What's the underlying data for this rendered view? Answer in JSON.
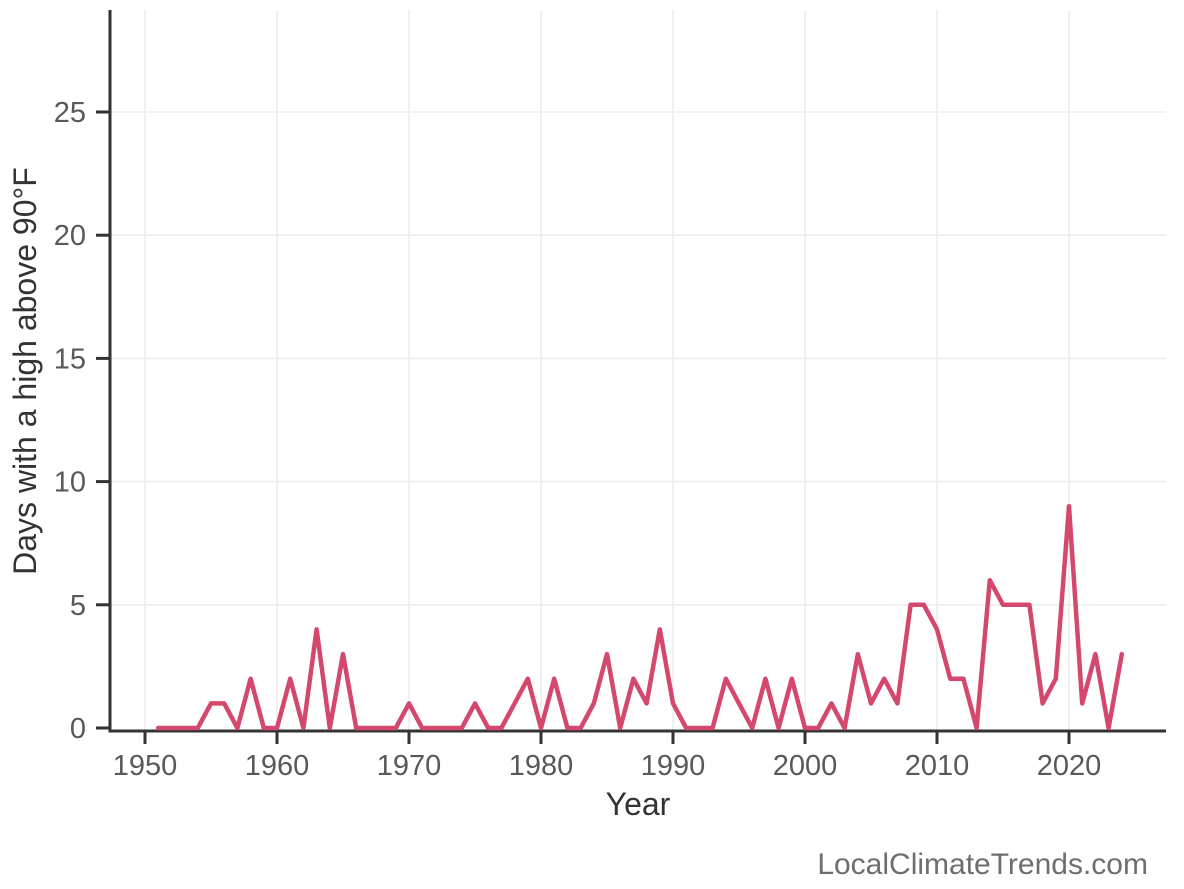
{
  "chart_data": {
    "type": "line",
    "title": "",
    "xlabel": "Year",
    "ylabel": "Days with a high above 90°F",
    "series_name": "days-above-90F",
    "x": [
      1951,
      1952,
      1953,
      1954,
      1955,
      1956,
      1957,
      1958,
      1959,
      1960,
      1961,
      1962,
      1963,
      1964,
      1965,
      1966,
      1967,
      1968,
      1969,
      1970,
      1971,
      1972,
      1973,
      1974,
      1975,
      1976,
      1977,
      1978,
      1979,
      1980,
      1981,
      1982,
      1983,
      1984,
      1985,
      1986,
      1987,
      1988,
      1989,
      1990,
      1991,
      1992,
      1993,
      1994,
      1995,
      1996,
      1997,
      1998,
      1999,
      2000,
      2001,
      2002,
      2003,
      2004,
      2005,
      2006,
      2007,
      2008,
      2009,
      2010,
      2011,
      2012,
      2013,
      2014,
      2015,
      2016,
      2017,
      2018,
      2019,
      2020,
      2021,
      2022,
      2023,
      2024
    ],
    "values": [
      0,
      0,
      0,
      0,
      1,
      1,
      0,
      2,
      0,
      0,
      2,
      0,
      4,
      0,
      3,
      0,
      0,
      0,
      0,
      1,
      0,
      0,
      0,
      0,
      1,
      0,
      0,
      1,
      2,
      0,
      2,
      0,
      0,
      1,
      3,
      0,
      2,
      1,
      4,
      1,
      0,
      0,
      0,
      2,
      1,
      0,
      2,
      0,
      2,
      0,
      0,
      1,
      0,
      3,
      1,
      2,
      1,
      5,
      5,
      4,
      2,
      2,
      0,
      6,
      5,
      5,
      5,
      1,
      2,
      9,
      1,
      3,
      0,
      3
    ],
    "x_ticks": [
      1950,
      1960,
      1970,
      1980,
      1990,
      2000,
      2010,
      2020
    ],
    "y_ticks": [
      0,
      5,
      10,
      15,
      20,
      25
    ],
    "xlim": [
      1947.3,
      2027.4
    ],
    "ylim": [
      0,
      29.1
    ],
    "grid": true,
    "legend": "none",
    "colors": {
      "line": "#d5486d",
      "axis": "#333333",
      "grid": "#efefef",
      "tick_label": "#595959",
      "axis_title": "#333333",
      "watermark": "#6e6e6e",
      "background": "#ffffff"
    },
    "watermark": "LocalClimateTrends.com"
  }
}
